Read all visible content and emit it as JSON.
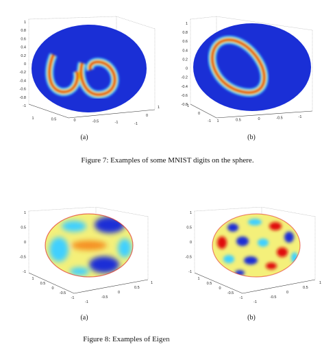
{
  "figure7": {
    "caption": "Figure 7: Examples of some MNIST digits on the sphere.",
    "panels": [
      {
        "label": "(a)",
        "z_ticks": [
          "1",
          "0.8",
          "0.6",
          "0.4",
          "0.2",
          "0",
          "-0.2",
          "-0.4",
          "-0.6",
          "-0.8",
          "-1"
        ],
        "x_ticks": [
          "1",
          "0.5",
          "0",
          "-0.5",
          "-1"
        ],
        "y_ticks": [
          "-1",
          "0",
          "1"
        ]
      },
      {
        "label": "(b)",
        "z_ticks": [
          "1",
          "0.8",
          "0.6",
          "0.4",
          "0.2",
          "0",
          "-0.2",
          "-0.4",
          "-0.6",
          "-0.8"
        ],
        "x_ticks": [
          "1",
          "0.5",
          "0",
          "-0.5",
          "-1"
        ],
        "y_ticks": [
          "-1",
          "0",
          "1"
        ]
      }
    ]
  },
  "figure8": {
    "caption": "Figure 8: Examples of Eigen",
    "panels": [
      {
        "label": "(a)",
        "z_ticks": [
          "1",
          "0.5",
          "0",
          "-0.5",
          "-1"
        ],
        "x_ticks": [
          "1",
          "0.5",
          "0",
          "-0.5",
          "-1"
        ],
        "y_ticks": [
          "-1",
          "-0.5",
          "0",
          "0.5",
          "1"
        ]
      },
      {
        "label": "(b)",
        "z_ticks": [
          "1",
          "0.5",
          "0",
          "-0.5",
          "-1"
        ],
        "x_ticks": [
          "1",
          "0.5",
          "0",
          "-0.5",
          "-1"
        ],
        "y_ticks": [
          "-1",
          "-0.5",
          "0",
          "0.5",
          "1"
        ]
      }
    ]
  },
  "colors": {
    "background_blue": "#1a2fd6",
    "hot_red": "#e01010",
    "warm_yellow": "#f5e000",
    "mid_cyan": "#3fd0ff",
    "light_yellow": "#f4f07a"
  }
}
